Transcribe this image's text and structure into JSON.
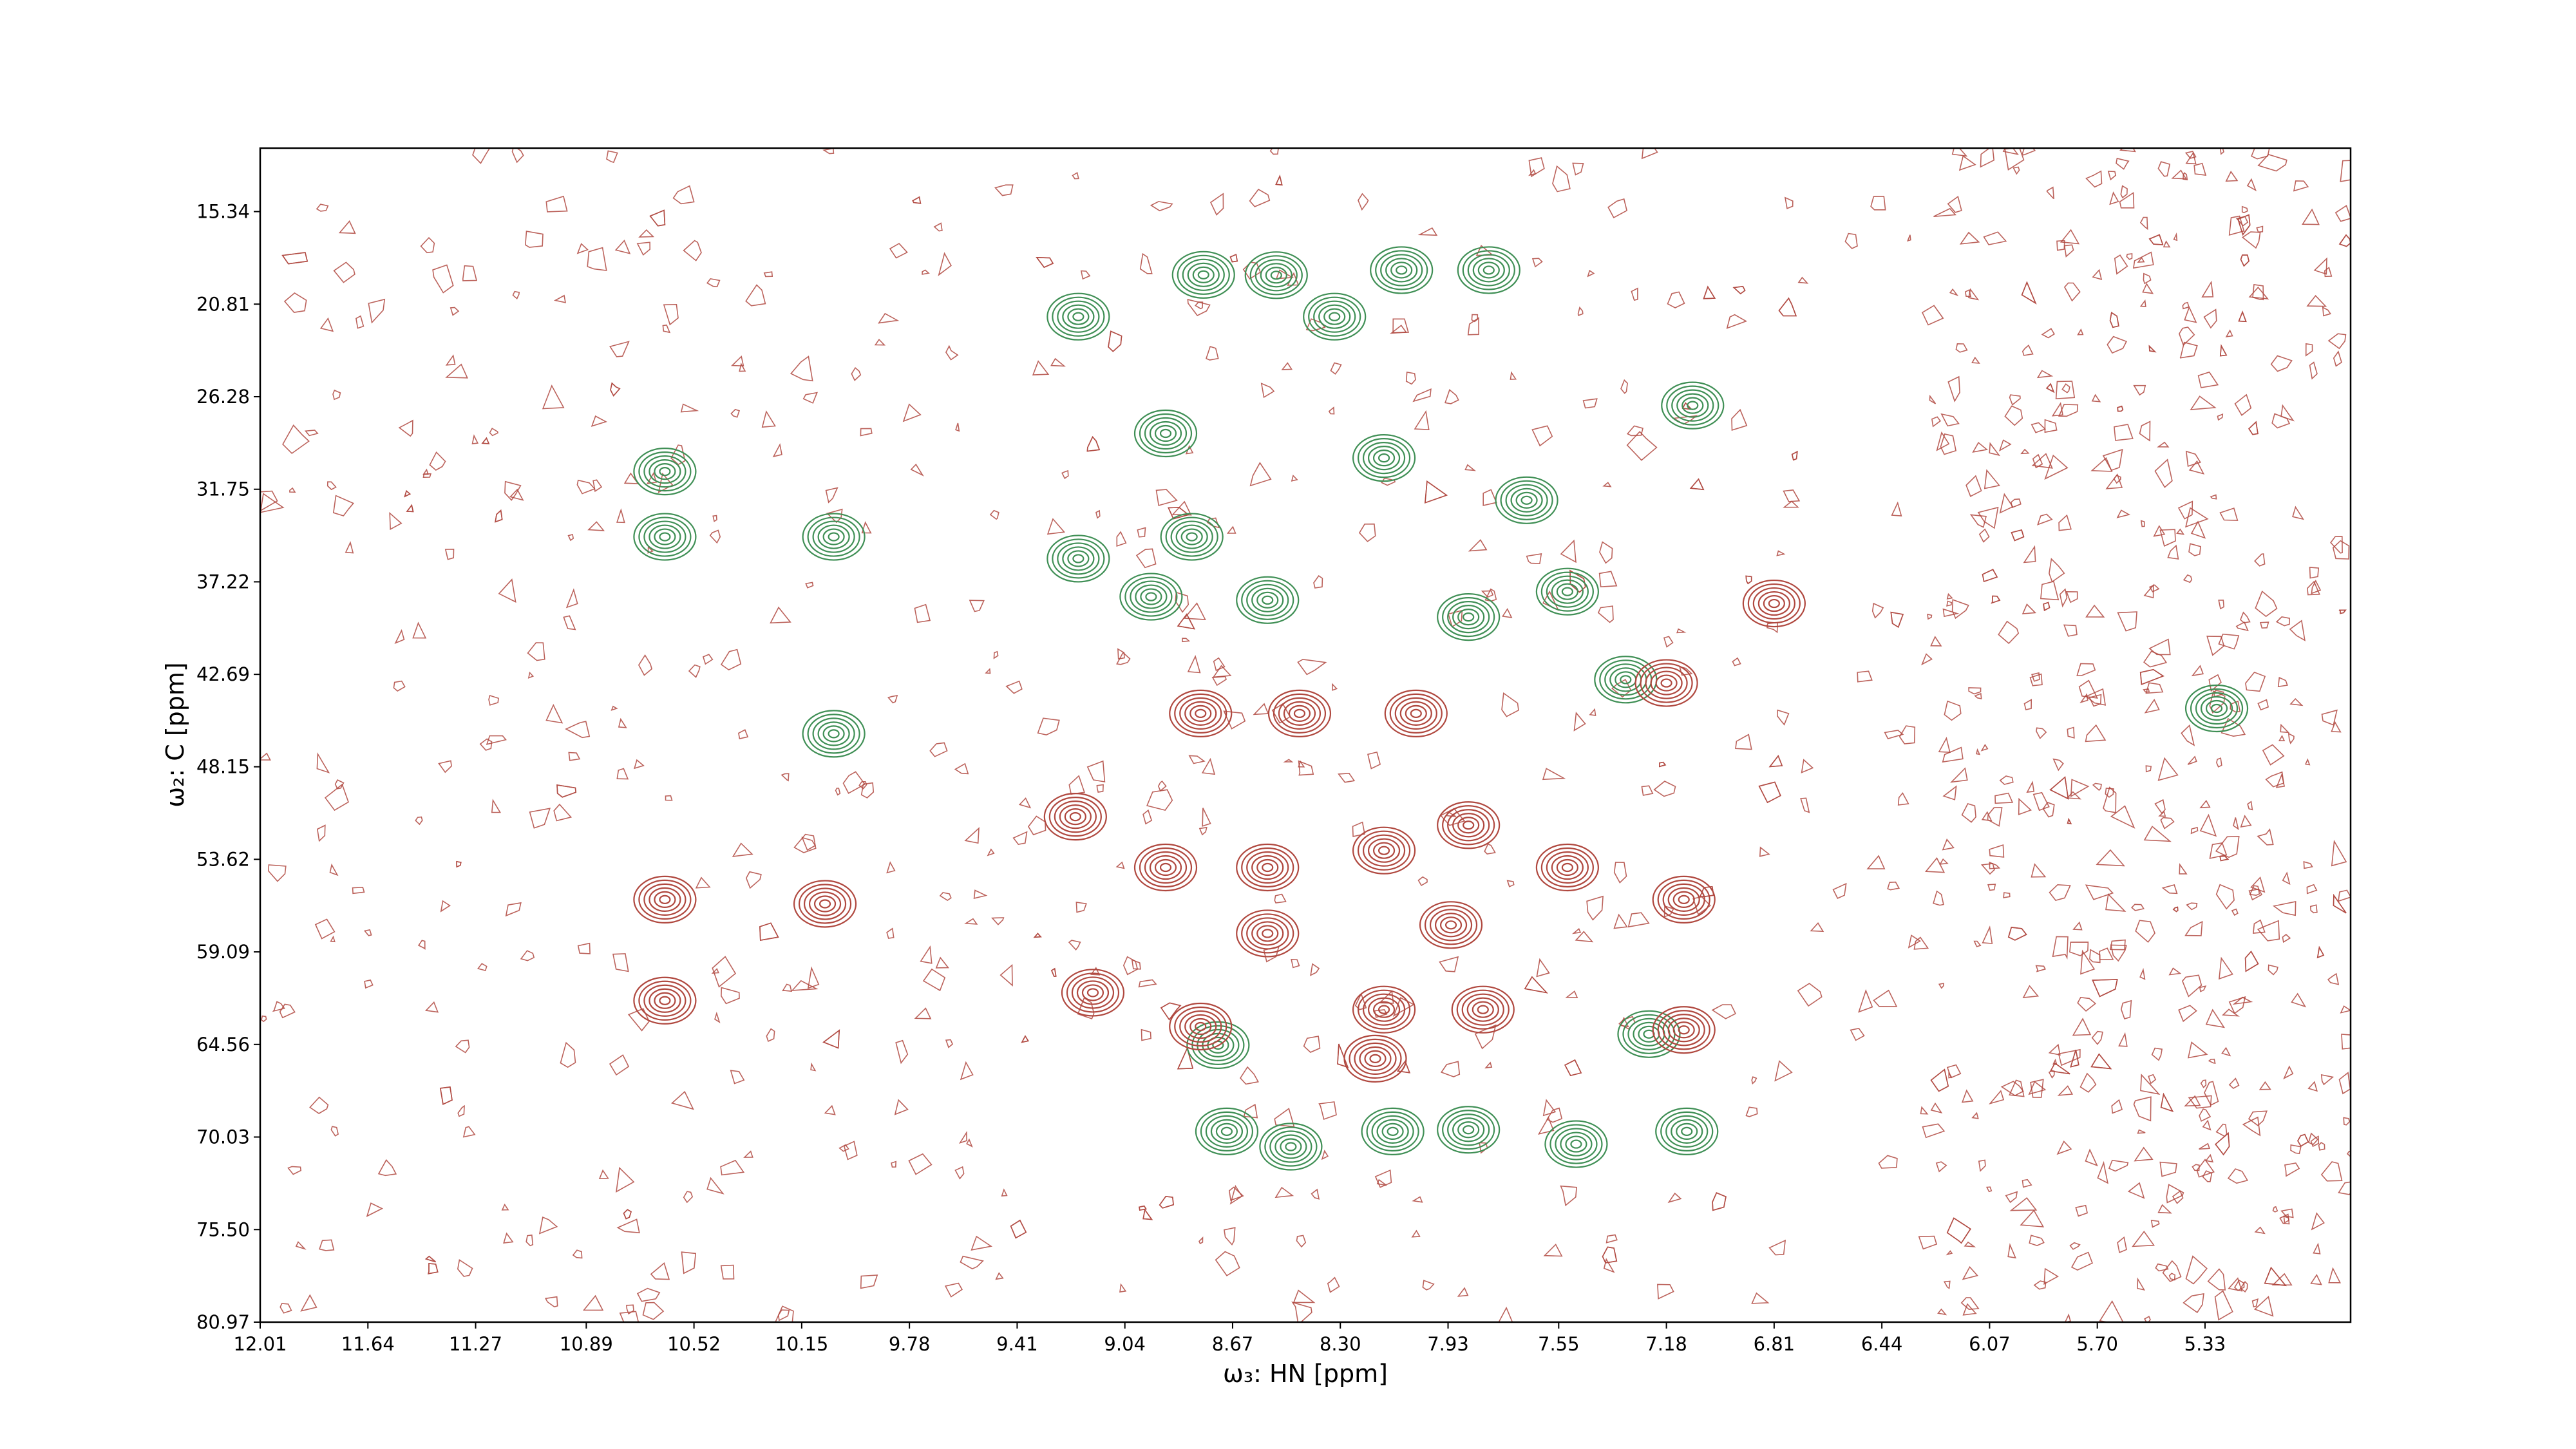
{
  "chart_data": {
    "type": "contour",
    "x_label": "ω₃: HN [ppm]",
    "y_label": "ω₂: C [ppm]",
    "xlim": [
      12.01,
      4.83
    ],
    "ylim": [
      80.97,
      11.59
    ],
    "xticks": [
      12.01,
      11.64,
      11.27,
      10.89,
      10.52,
      10.15,
      9.78,
      9.41,
      9.04,
      8.67,
      {
        "value": 8.3,
        "label": "8.30"
      },
      7.93,
      7.55,
      7.18,
      6.81,
      6.44,
      6.07,
      {
        "value": 5.7,
        "label": "5.70"
      },
      5.33
    ],
    "yticks": [
      15.34,
      20.81,
      26.28,
      31.75,
      37.22,
      42.69,
      48.15,
      53.62,
      59.09,
      64.56,
      70.03,
      {
        "value": 75.5,
        "label": "75.50"
      },
      80.97
    ],
    "series": [
      {
        "color": "#3f8f55",
        "x": [
          8.77,
          8.52,
          8.09,
          7.79,
          9.2,
          8.32,
          8.9,
          7.09,
          10.62,
          10.62,
          10.04,
          9.2,
          8.95,
          8.81,
          8.15,
          7.66,
          7.52,
          7.86,
          10.04,
          7.32,
          8.55,
          8.72,
          7.24,
          7.86,
          8.12,
          8.69,
          8.47,
          7.49,
          7.11,
          5.29
        ],
        "values": [
          19.08,
          19.1,
          18.8,
          18.8,
          21.55,
          21.55,
          28.45,
          26.8,
          30.7,
          34.56,
          34.56,
          35.85,
          38.1,
          34.56,
          29.9,
          32.4,
          37.8,
          39.3,
          46.2,
          43.0,
          38.3,
          64.6,
          63.95,
          69.6,
          69.7,
          69.7,
          70.6,
          70.45,
          69.7,
          44.7
        ]
      },
      {
        "color": "#b0483f",
        "x": [
          10.62,
          10.07,
          10.62,
          9.21,
          9.15,
          8.78,
          8.44,
          8.04,
          7.18,
          8.9,
          8.55,
          8.15,
          7.86,
          7.52,
          7.12,
          8.55,
          7.92,
          8.15,
          7.81,
          8.78,
          8.18,
          6.81,
          7.12
        ],
        "values": [
          56.0,
          56.25,
          61.97,
          51.1,
          61.5,
          45.0,
          45.0,
          45.0,
          43.2,
          54.1,
          54.1,
          53.1,
          51.6,
          54.1,
          56.0,
          58.0,
          57.5,
          62.5,
          62.5,
          63.5,
          65.4,
          38.5,
          63.7
        ]
      }
    ]
  }
}
